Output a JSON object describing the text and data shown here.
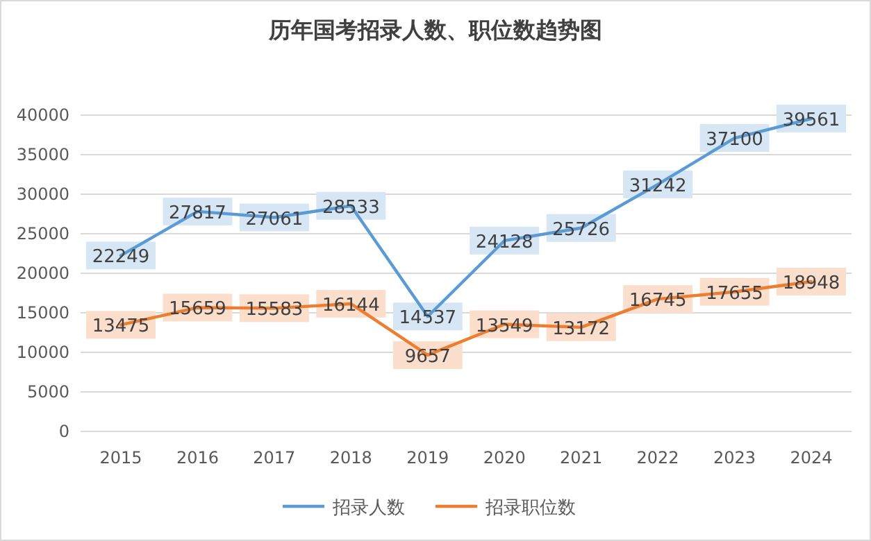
{
  "chart_data": {
    "type": "line",
    "title": "历年国考招录人数、职位数趋势图",
    "categories": [
      "2015",
      "2016",
      "2017",
      "2018",
      "2019",
      "2020",
      "2021",
      "2022",
      "2023",
      "2024"
    ],
    "series": [
      {
        "name": "招录人数",
        "color": "#5b9bd5",
        "values": [
          22249,
          27817,
          27061,
          28533,
          14537,
          24128,
          25726,
          31242,
          37100,
          39561
        ]
      },
      {
        "name": "招录职位数",
        "color": "#ed7d31",
        "values": [
          13475,
          15659,
          15583,
          16144,
          9657,
          13549,
          13172,
          16745,
          17655,
          18948
        ]
      }
    ],
    "ylim": [
      0,
      40000
    ],
    "yticks": [
      0,
      5000,
      10000,
      15000,
      20000,
      25000,
      30000,
      35000,
      40000
    ],
    "grid": "y",
    "legend": "bottom",
    "line_style": "solid",
    "data_labels": true
  }
}
